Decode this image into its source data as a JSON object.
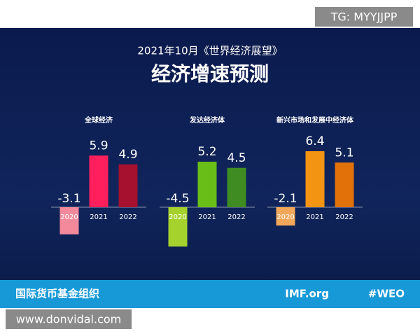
{
  "header": {
    "subtitle": "2021年10月《世界经济展望》",
    "title": "经济增速预测"
  },
  "chart_data": [
    {
      "type": "bar",
      "title": "全球经济",
      "categories": [
        "2020",
        "2021",
        "2022"
      ],
      "values": [
        -3.1,
        5.9,
        4.9
      ],
      "colors": [
        "#f4899b",
        "#ff1f5c",
        "#a5112f"
      ]
    },
    {
      "type": "bar",
      "title": "发达经济体",
      "categories": [
        "2020",
        "2021",
        "2022"
      ],
      "values": [
        -4.5,
        5.2,
        4.5
      ],
      "colors": [
        "#a6d22e",
        "#69bf17",
        "#3f8c22"
      ]
    },
    {
      "type": "bar",
      "title": "新兴市场和发展中经济体",
      "categories": [
        "2020",
        "2021",
        "2022"
      ],
      "values": [
        -2.1,
        6.4,
        5.1
      ],
      "colors": [
        "#f2a65a",
        "#f39412",
        "#e2710a"
      ]
    }
  ],
  "footer": {
    "org": "国际货币基金组织",
    "site": "IMF.org",
    "tag": "#WEO"
  },
  "watermarks": [
    "TG: MYYJJPP",
    "www.donvidal.com"
  ]
}
